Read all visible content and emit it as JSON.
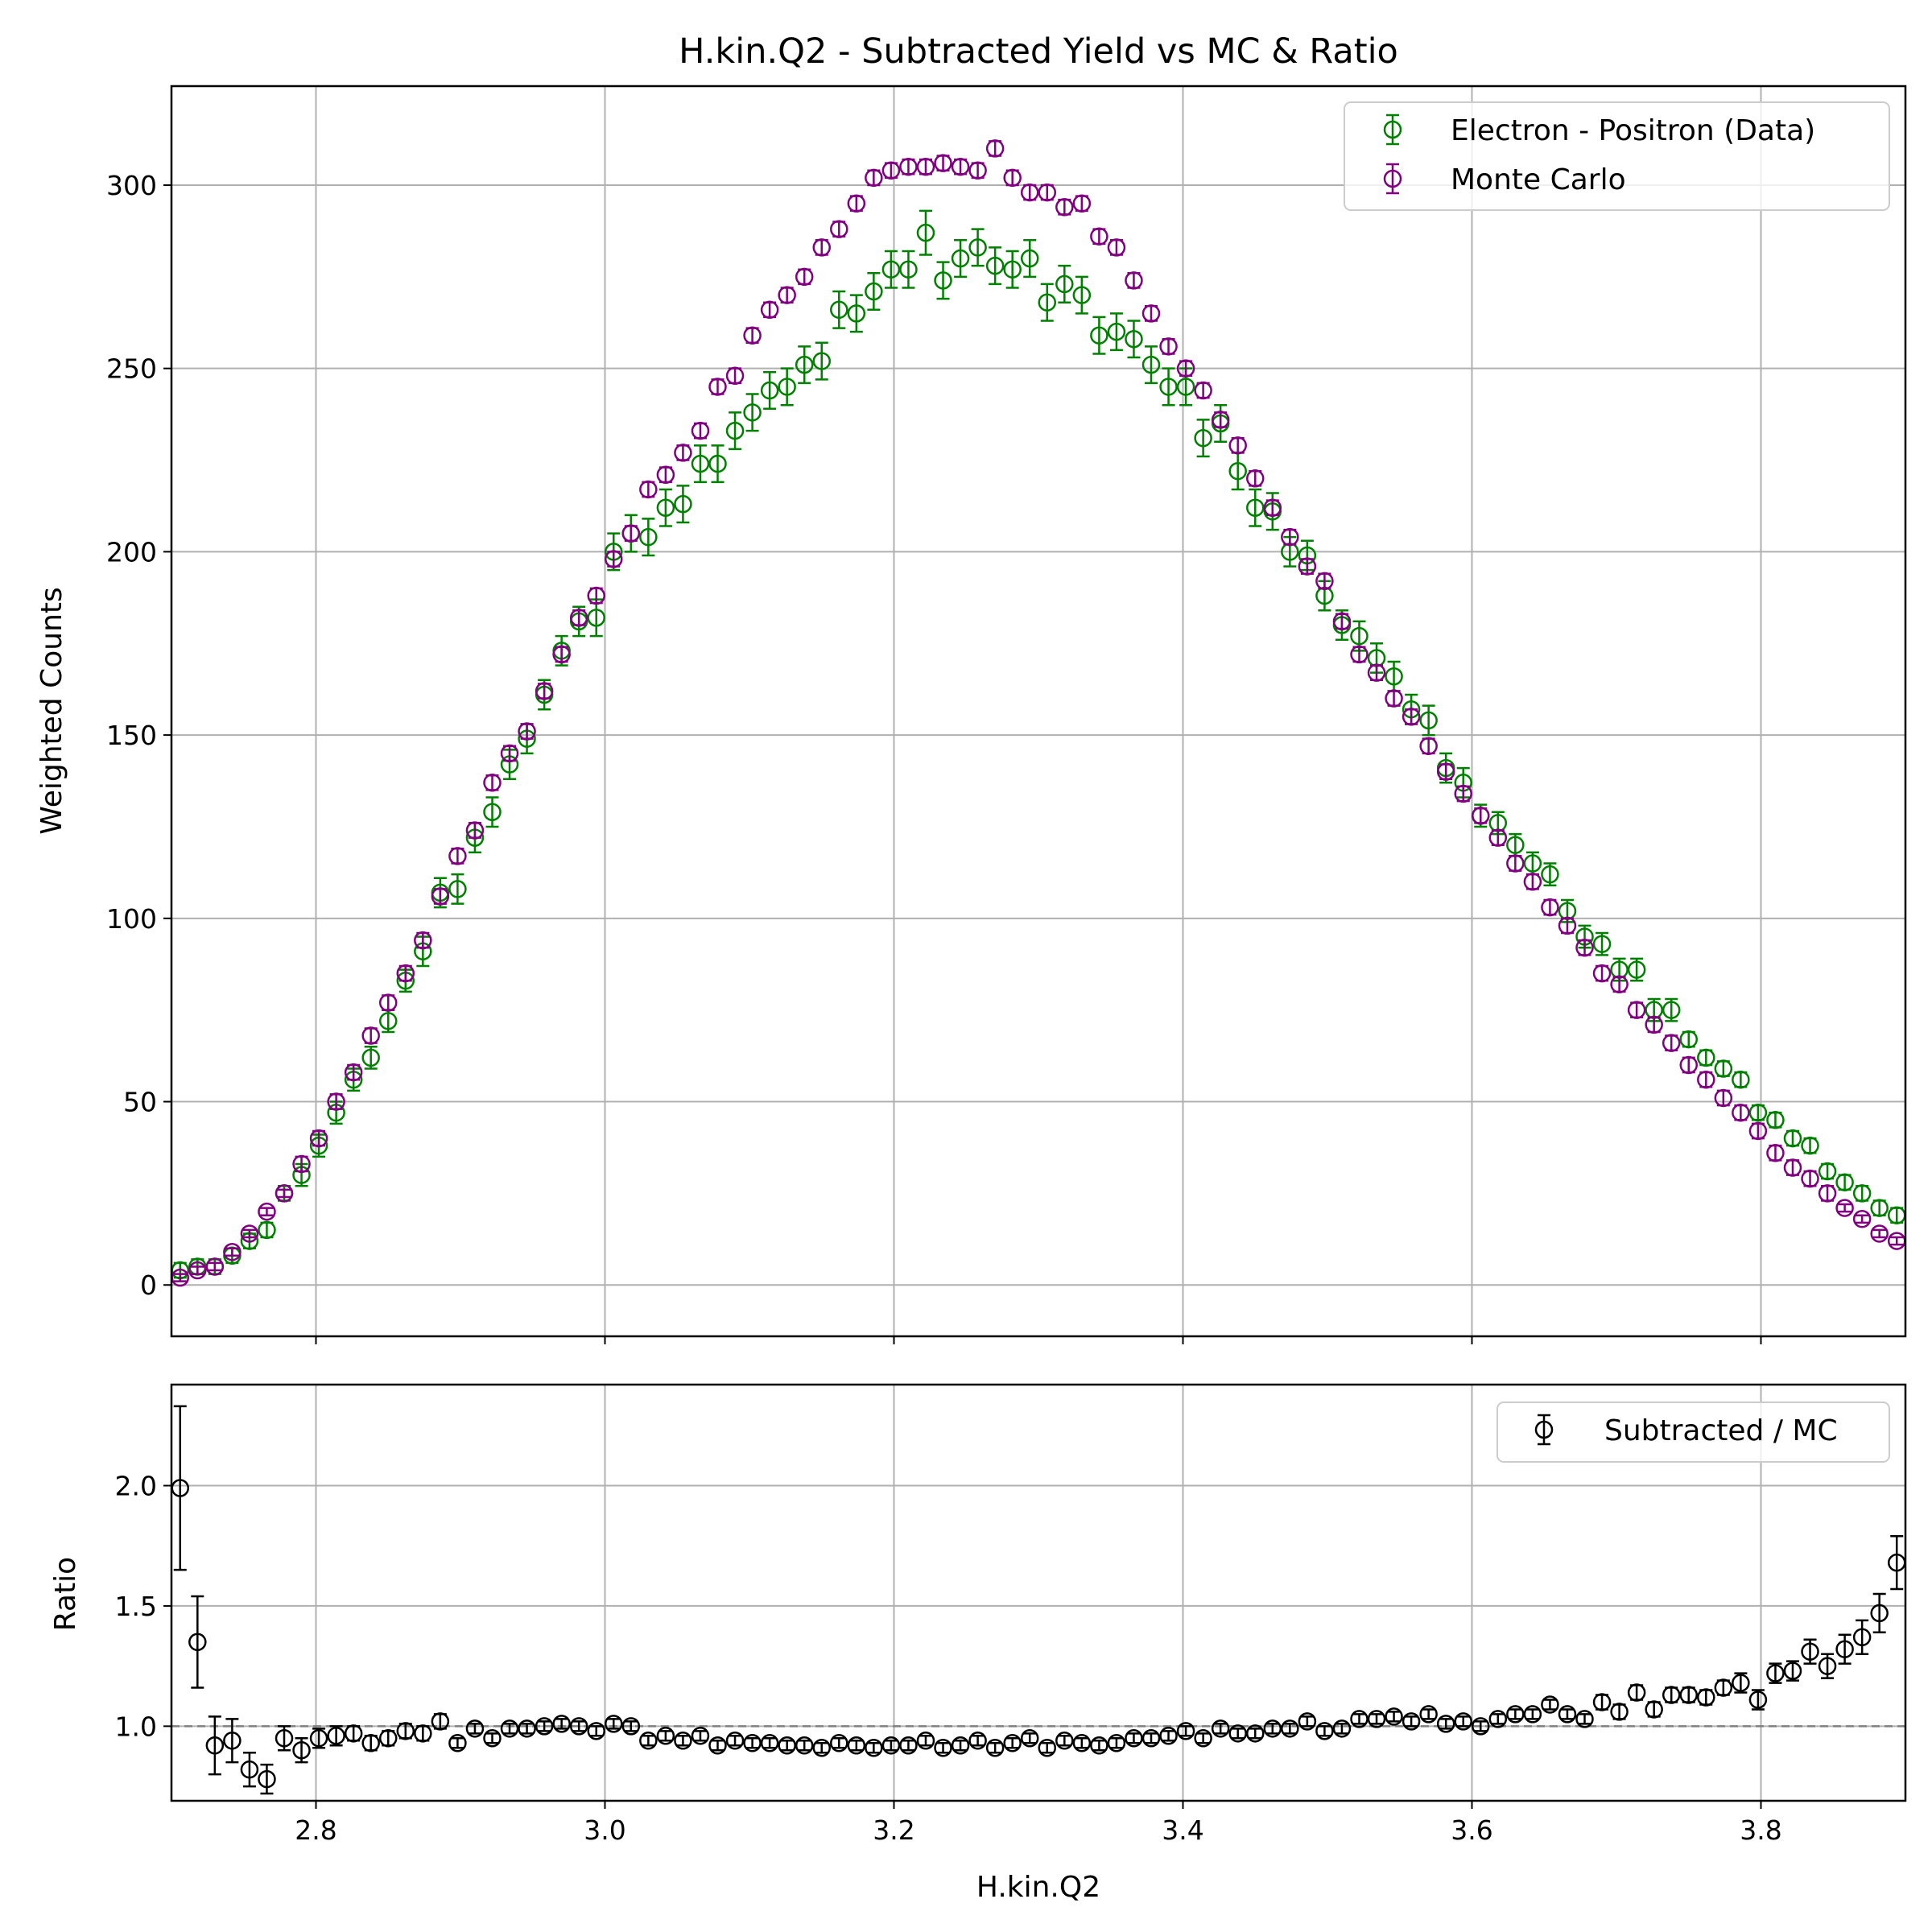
{
  "chart_data": [
    {
      "type": "scatter",
      "title": "H.kin.Q2 - Subtracted Yield vs MC & Ratio",
      "xlabel": "",
      "ylabel": "Weighted Counts",
      "xlim": [
        2.7,
        3.9
      ],
      "ylim": [
        -14,
        327
      ],
      "x_ticks": [
        2.8,
        3.0,
        3.2,
        3.4,
        3.6,
        3.8
      ],
      "y_ticks": [
        0,
        50,
        100,
        150,
        200,
        250,
        300
      ],
      "y_tick_labels": [
        "0",
        "50",
        "100",
        "150",
        "200",
        "250",
        "300"
      ],
      "grid": true,
      "legend_position": "top-right",
      "x": [
        2.706,
        2.718,
        2.73,
        2.742,
        2.754,
        2.766,
        2.778,
        2.79,
        2.802,
        2.814,
        2.826,
        2.838,
        2.85,
        2.862,
        2.874,
        2.886,
        2.898,
        2.91,
        2.922,
        2.934,
        2.946,
        2.958,
        2.97,
        2.982,
        2.994,
        3.006,
        3.018,
        3.03,
        3.042,
        3.054,
        3.066,
        3.078,
        3.09,
        3.102,
        3.114,
        3.126,
        3.138,
        3.15,
        3.162,
        3.174,
        3.186,
        3.198,
        3.21,
        3.222,
        3.234,
        3.246,
        3.258,
        3.27,
        3.282,
        3.294,
        3.306,
        3.318,
        3.33,
        3.342,
        3.354,
        3.366,
        3.378,
        3.39,
        3.402,
        3.414,
        3.426,
        3.438,
        3.45,
        3.462,
        3.474,
        3.486,
        3.498,
        3.51,
        3.522,
        3.534,
        3.546,
        3.558,
        3.57,
        3.582,
        3.594,
        3.606,
        3.618,
        3.63,
        3.642,
        3.654,
        3.666,
        3.678,
        3.69,
        3.702,
        3.714,
        3.726,
        3.738,
        3.75,
        3.762,
        3.774,
        3.786,
        3.798,
        3.81,
        3.822,
        3.834,
        3.846,
        3.858,
        3.87,
        3.882,
        3.894
      ],
      "series": [
        {
          "name": "Electron - Positron (Data)",
          "color": "#008000",
          "values": [
            4,
            5,
            5,
            8,
            12,
            15,
            25,
            30,
            38,
            47,
            56,
            62,
            72,
            83,
            91,
            107,
            108,
            122,
            129,
            142,
            149,
            161,
            173,
            181,
            182,
            200,
            205,
            204,
            212,
            213,
            224,
            224,
            233,
            238,
            244,
            245,
            251,
            252,
            266,
            265,
            271,
            277,
            277,
            287,
            274,
            280,
            283,
            278,
            277,
            280,
            268,
            273,
            270,
            259,
            260,
            258,
            251,
            245,
            245,
            231,
            235,
            222,
            212,
            211,
            200,
            199,
            188,
            180,
            177,
            171,
            166,
            157,
            154,
            141,
            137,
            128,
            126,
            120,
            115,
            112,
            102,
            95,
            93,
            86,
            86,
            75,
            75,
            67,
            62,
            59,
            56,
            47,
            45,
            40,
            38,
            31,
            28,
            25,
            21,
            19
          ],
          "errors": [
            2,
            2,
            2,
            2,
            2,
            2,
            2,
            3,
            3,
            3,
            3,
            3,
            3,
            3,
            4,
            4,
            4,
            4,
            4,
            4,
            4,
            4,
            4,
            4,
            5,
            5,
            5,
            5,
            5,
            5,
            5,
            5,
            5,
            5,
            5,
            5,
            5,
            5,
            5,
            5,
            5,
            5,
            5,
            6,
            5,
            5,
            5,
            5,
            5,
            5,
            5,
            5,
            5,
            5,
            5,
            5,
            5,
            5,
            5,
            5,
            5,
            5,
            5,
            5,
            4,
            4,
            4,
            4,
            4,
            4,
            4,
            4,
            4,
            4,
            4,
            3,
            3,
            3,
            3,
            3,
            3,
            3,
            3,
            3,
            3,
            3,
            3,
            2,
            2,
            2,
            2,
            2,
            2,
            2,
            2,
            2,
            2,
            2,
            2,
            2
          ]
        },
        {
          "name": "Monte Carlo",
          "color": "#800080",
          "values": [
            2,
            4,
            5,
            9,
            14,
            20,
            25,
            33,
            40,
            50,
            58,
            68,
            77,
            85,
            94,
            106,
            117,
            124,
            137,
            145,
            151,
            162,
            172,
            182,
            188,
            198,
            205,
            217,
            221,
            227,
            233,
            245,
            248,
            259,
            266,
            270,
            275,
            283,
            288,
            295,
            302,
            304,
            305,
            305,
            306,
            305,
            304,
            310,
            302,
            298,
            298,
            294,
            295,
            286,
            283,
            274,
            265,
            256,
            250,
            244,
            236,
            229,
            220,
            212,
            204,
            196,
            192,
            181,
            172,
            167,
            160,
            155,
            147,
            140,
            134,
            128,
            122,
            115,
            110,
            103,
            98,
            92,
            85,
            82,
            75,
            71,
            66,
            60,
            56,
            51,
            47,
            42,
            36,
            32,
            29,
            25,
            21,
            18,
            14,
            12
          ],
          "errors": [
            1,
            1,
            1,
            1,
            1,
            1,
            1,
            2,
            2,
            2,
            2,
            2,
            2,
            2,
            2,
            2,
            2,
            2,
            2,
            2,
            2,
            2,
            2,
            2,
            2,
            2,
            2,
            2,
            2,
            2,
            2,
            2,
            2,
            2,
            2,
            2,
            2,
            2,
            2,
            2,
            2,
            2,
            2,
            2,
            2,
            2,
            2,
            2,
            2,
            2,
            2,
            2,
            2,
            2,
            2,
            2,
            2,
            2,
            2,
            2,
            2,
            2,
            2,
            2,
            2,
            2,
            2,
            2,
            2,
            2,
            2,
            2,
            2,
            2,
            2,
            2,
            2,
            2,
            2,
            2,
            2,
            2,
            2,
            2,
            2,
            2,
            2,
            2,
            2,
            2,
            2,
            2,
            2,
            2,
            2,
            2,
            1,
            1,
            1,
            1
          ]
        }
      ]
    },
    {
      "type": "scatter",
      "title": "",
      "xlabel": "H.kin.Q2",
      "ylabel": "Ratio",
      "xlim": [
        2.7,
        3.9
      ],
      "ylim": [
        0.69,
        2.42
      ],
      "x_ticks": [
        2.8,
        3.0,
        3.2,
        3.4,
        3.6,
        3.8
      ],
      "x_tick_labels": [
        "2.8",
        "3.0",
        "3.2",
        "3.4",
        "3.6",
        "3.8"
      ],
      "y_ticks": [
        1.0,
        1.5,
        2.0
      ],
      "y_tick_labels": [
        "1.0",
        "1.5",
        "2.0"
      ],
      "reference_line": 1.0,
      "grid": true,
      "legend_position": "top-right",
      "x": [
        2.706,
        2.718,
        2.73,
        2.742,
        2.754,
        2.766,
        2.778,
        2.79,
        2.802,
        2.814,
        2.826,
        2.838,
        2.85,
        2.862,
        2.874,
        2.886,
        2.898,
        2.91,
        2.922,
        2.934,
        2.946,
        2.958,
        2.97,
        2.982,
        2.994,
        3.006,
        3.018,
        3.03,
        3.042,
        3.054,
        3.066,
        3.078,
        3.09,
        3.102,
        3.114,
        3.126,
        3.138,
        3.15,
        3.162,
        3.174,
        3.186,
        3.198,
        3.21,
        3.222,
        3.234,
        3.246,
        3.258,
        3.27,
        3.282,
        3.294,
        3.306,
        3.318,
        3.33,
        3.342,
        3.354,
        3.366,
        3.378,
        3.39,
        3.402,
        3.414,
        3.426,
        3.438,
        3.45,
        3.462,
        3.474,
        3.486,
        3.498,
        3.51,
        3.522,
        3.534,
        3.546,
        3.558,
        3.57,
        3.582,
        3.594,
        3.606,
        3.618,
        3.63,
        3.642,
        3.654,
        3.666,
        3.678,
        3.69,
        3.702,
        3.714,
        3.726,
        3.738,
        3.75,
        3.762,
        3.774,
        3.786,
        3.798,
        3.81,
        3.822,
        3.834,
        3.846,
        3.858,
        3.87,
        3.882,
        3.894
      ],
      "series": [
        {
          "name": "Subtracted / MC",
          "color": "#000000",
          "values": [
            1.99,
            1.35,
            0.92,
            0.94,
            0.82,
            0.78,
            0.95,
            0.9,
            0.95,
            0.96,
            0.97,
            0.93,
            0.95,
            0.98,
            0.97,
            1.02,
            0.93,
            0.99,
            0.95,
            0.99,
            0.99,
            1.0,
            1.01,
            1.0,
            0.98,
            1.01,
            1.0,
            0.94,
            0.96,
            0.94,
            0.96,
            0.92,
            0.94,
            0.93,
            0.93,
            0.92,
            0.92,
            0.91,
            0.93,
            0.92,
            0.91,
            0.92,
            0.92,
            0.94,
            0.91,
            0.92,
            0.94,
            0.91,
            0.93,
            0.95,
            0.91,
            0.94,
            0.93,
            0.92,
            0.93,
            0.95,
            0.95,
            0.96,
            0.98,
            0.95,
            0.99,
            0.97,
            0.97,
            0.99,
            0.99,
            1.02,
            0.98,
            0.99,
            1.03,
            1.03,
            1.04,
            1.02,
            1.05,
            1.01,
            1.02,
            1.0,
            1.03,
            1.05,
            1.05,
            1.09,
            1.05,
            1.03,
            1.1,
            1.06,
            1.14,
            1.07,
            1.13,
            1.13,
            1.12,
            1.16,
            1.18,
            1.11,
            1.22,
            1.23,
            1.31,
            1.25,
            1.32,
            1.37,
            1.47,
            1.68
          ],
          "errors": [
            0.34,
            0.19,
            0.12,
            0.09,
            0.07,
            0.06,
            0.05,
            0.05,
            0.04,
            0.04,
            0.03,
            0.03,
            0.03,
            0.03,
            0.03,
            0.03,
            0.02,
            0.02,
            0.02,
            0.02,
            0.02,
            0.02,
            0.02,
            0.02,
            0.02,
            0.02,
            0.02,
            0.02,
            0.02,
            0.02,
            0.02,
            0.02,
            0.02,
            0.02,
            0.02,
            0.02,
            0.02,
            0.02,
            0.02,
            0.02,
            0.02,
            0.02,
            0.02,
            0.02,
            0.02,
            0.02,
            0.02,
            0.02,
            0.02,
            0.02,
            0.02,
            0.02,
            0.02,
            0.02,
            0.02,
            0.02,
            0.02,
            0.02,
            0.02,
            0.02,
            0.02,
            0.02,
            0.02,
            0.02,
            0.02,
            0.02,
            0.02,
            0.02,
            0.02,
            0.02,
            0.02,
            0.02,
            0.02,
            0.02,
            0.02,
            0.02,
            0.02,
            0.02,
            0.02,
            0.02,
            0.02,
            0.02,
            0.03,
            0.03,
            0.03,
            0.03,
            0.03,
            0.03,
            0.03,
            0.03,
            0.04,
            0.04,
            0.04,
            0.04,
            0.05,
            0.05,
            0.06,
            0.07,
            0.08,
            0.11
          ]
        }
      ]
    }
  ]
}
